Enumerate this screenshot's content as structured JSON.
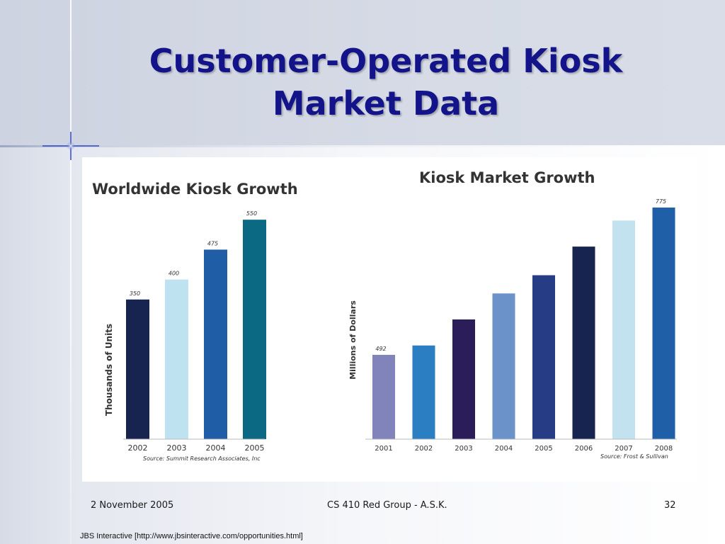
{
  "slide": {
    "title_line1": "Customer-Operated Kiosk",
    "title_line2": "Market Data"
  },
  "footer": {
    "date": "2 November 2005",
    "center": "CS 410 Red Group - A.S.K.",
    "page": "32"
  },
  "credit": "JBS Interactive [http://www.jbsinteractive.com/opportunities.html]",
  "chart_data": [
    {
      "type": "bar",
      "title": "Worldwide Kiosk Growth",
      "ylabel": "Thousands of Units",
      "xlabel": "",
      "source": "Source: Summit Research Associates, Inc",
      "categories": [
        "2002",
        "2003",
        "2004",
        "2005"
      ],
      "values": [
        350,
        400,
        475,
        550
      ],
      "data_labels": [
        "350",
        "400",
        "475",
        "550"
      ],
      "colors": [
        "#17244f",
        "#bfe2f0",
        "#1f5da6",
        "#0c6983"
      ],
      "ylim": [
        0,
        600
      ],
      "grid": false,
      "legend": "none"
    },
    {
      "type": "bar",
      "title": "Kiosk Market Growth",
      "ylabel": "Millions of Dollars",
      "xlabel": "",
      "source": "Source: Frost & Sullivan",
      "categories": [
        "2001",
        "2002",
        "2003",
        "2004",
        "2005",
        "2006",
        "2007",
        "2008"
      ],
      "values": [
        492,
        510,
        560,
        610,
        645,
        700,
        750,
        775
      ],
      "data_labels": [
        "492",
        "",
        "",
        "",
        "",
        "",
        "",
        "775"
      ],
      "colors": [
        "#8183bb",
        "#2b7ec2",
        "#2a1d5a",
        "#6c93c9",
        "#263d85",
        "#16244f",
        "#c2e2f0",
        "#1f5fa8"
      ],
      "ylim": [
        330,
        790
      ],
      "grid": false,
      "legend": "none"
    }
  ]
}
